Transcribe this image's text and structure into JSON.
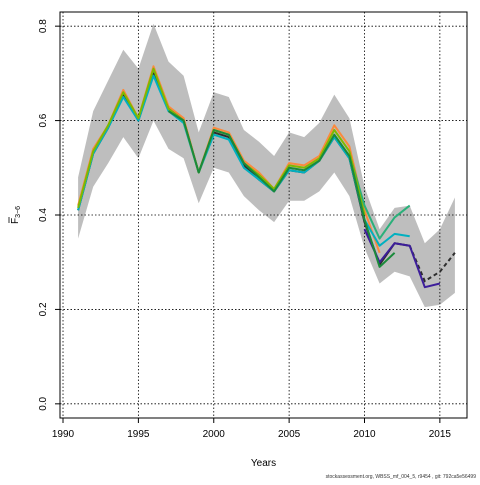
{
  "chart_data": {
    "type": "line",
    "xlabel": "Years",
    "ylabel": "F",
    "ylabel_subscript": "3−6",
    "xlim": [
      1989.8,
      2016.8
    ],
    "ylim": [
      -0.03,
      0.83
    ],
    "xticks": [
      1990,
      1995,
      2000,
      2005,
      2010,
      2015
    ],
    "yticks": [
      0.0,
      0.2,
      0.4,
      0.6,
      0.8
    ],
    "xtick_labels": [
      "1990",
      "1995",
      "2000",
      "2005",
      "2010",
      "2015"
    ],
    "ytick_labels": [
      "0.0",
      "0.2",
      "0.4",
      "0.6",
      "0.8"
    ],
    "grid": true,
    "footnote": "stockassessment.org, WBSS_mf_004_5, r9454 , git: 792ca5e56499",
    "band": {
      "color": "#bebebe",
      "x": [
        1991,
        1992,
        1993,
        1994,
        1995,
        1996,
        1997,
        1998,
        1999,
        2000,
        2001,
        2002,
        2003,
        2004,
        2005,
        2006,
        2007,
        2008,
        2009,
        2010,
        2011,
        2012,
        2013,
        2014,
        2015,
        2016
      ],
      "lower": [
        0.35,
        0.46,
        0.51,
        0.565,
        0.52,
        0.6,
        0.54,
        0.52,
        0.425,
        0.5,
        0.49,
        0.44,
        0.41,
        0.385,
        0.43,
        0.43,
        0.45,
        0.49,
        0.44,
        0.33,
        0.255,
        0.28,
        0.27,
        0.205,
        0.21,
        0.235
      ],
      "upper": [
        0.48,
        0.62,
        0.685,
        0.75,
        0.71,
        0.805,
        0.725,
        0.695,
        0.575,
        0.66,
        0.65,
        0.58,
        0.555,
        0.525,
        0.575,
        0.565,
        0.595,
        0.655,
        0.605,
        0.46,
        0.37,
        0.415,
        0.42,
        0.34,
        0.37,
        0.437
      ]
    },
    "series": [
      {
        "color": "#fb8a3d",
        "x": [
          1991,
          1992,
          1993,
          1994,
          1995,
          1996,
          1997,
          1998,
          1999,
          2000,
          2001,
          2002,
          2003,
          2004,
          2005,
          2006,
          2007,
          2008,
          2009,
          2010,
          2011
        ],
        "values": [
          0.42,
          0.54,
          0.59,
          0.665,
          0.605,
          0.715,
          0.63,
          0.605,
          0.49,
          0.585,
          0.575,
          0.515,
          0.49,
          0.455,
          0.51,
          0.505,
          0.525,
          0.59,
          0.545,
          0.41,
          0.32
        ]
      },
      {
        "color": "#2d2d2d",
        "x": [
          1991,
          1992,
          1993,
          1994,
          1995,
          1996,
          1997,
          1998,
          1999,
          2000,
          2001,
          2002,
          2003,
          2004,
          2005,
          2006,
          2007,
          2008,
          2009,
          2010,
          2011,
          2012,
          2013,
          2014,
          2015,
          2016
        ],
        "values": [
          0.41,
          0.53,
          0.585,
          0.655,
          0.6,
          0.7,
          0.625,
          0.6,
          0.49,
          0.575,
          0.565,
          0.505,
          0.475,
          0.45,
          0.495,
          0.49,
          0.515,
          0.565,
          0.52,
          0.385,
          0.295,
          0.34,
          0.335,
          0.26,
          0.28,
          0.32
        ],
        "dashed_from": 2014
      },
      {
        "color": "#00b0c0",
        "x": [
          1991,
          1992,
          1993,
          1994,
          1995,
          1996,
          1997,
          1998,
          1999,
          2000,
          2001,
          2002,
          2003,
          2004,
          2005,
          2006,
          2007,
          2008,
          2009,
          2010,
          2011,
          2012,
          2013
        ],
        "values": [
          0.41,
          0.53,
          0.585,
          0.65,
          0.6,
          0.695,
          0.62,
          0.595,
          0.49,
          0.57,
          0.56,
          0.5,
          0.475,
          0.45,
          0.495,
          0.49,
          0.515,
          0.565,
          0.52,
          0.39,
          0.335,
          0.36,
          0.355
        ]
      },
      {
        "color": "#3d1e9a",
        "x": [
          2010,
          2011,
          2012,
          2013,
          2014,
          2015
        ],
        "values": [
          0.37,
          0.3,
          0.34,
          0.335,
          0.247,
          0.255
        ]
      },
      {
        "color": "#2bb07a",
        "x": [
          2009,
          2010,
          2011,
          2012,
          2013
        ],
        "values": [
          0.53,
          0.42,
          0.35,
          0.395,
          0.42
        ]
      },
      {
        "color": "#7fb800",
        "x": [
          1991,
          1992,
          1993,
          1994,
          1995,
          1996,
          1997,
          1998,
          1999,
          2000,
          2001,
          2002,
          2003,
          2004,
          2005,
          2006,
          2007,
          2008,
          2009,
          2010
        ],
        "values": [
          0.415,
          0.535,
          0.59,
          0.66,
          0.605,
          0.71,
          0.625,
          0.6,
          0.49,
          0.58,
          0.57,
          0.51,
          0.485,
          0.455,
          0.505,
          0.5,
          0.52,
          0.58,
          0.535,
          0.4
        ]
      },
      {
        "color": "#1a8a3a",
        "x": [
          1997,
          1998,
          1999,
          2000,
          2001,
          2002,
          2003,
          2004,
          2005,
          2006,
          2007,
          2008,
          2009,
          2010,
          2011,
          2012
        ],
        "values": [
          0.62,
          0.6,
          0.49,
          0.58,
          0.57,
          0.51,
          0.48,
          0.45,
          0.5,
          0.495,
          0.515,
          0.57,
          0.525,
          0.39,
          0.29,
          0.32
        ]
      }
    ]
  }
}
